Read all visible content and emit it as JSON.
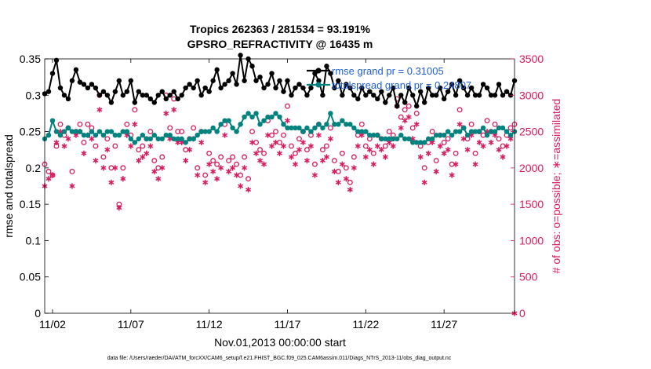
{
  "chart_data": {
    "type": "line",
    "title_line1": "Tropics 262363 / 281534 = 93.191%",
    "title_line2": "GPSRO_REFRACTIVITY @ 16435 m",
    "xlabel": "Nov.01,2013 00:00:00 start",
    "ylabel_left": "rmse and totalspread",
    "ylabel_right": "# of obs: o=possible; ∗=assimilated",
    "footer": "data file: /Users/raeder/DAI/ATM_forcXX/CAM6_setup/f.e21.FHIST_BGC.f09_025.CAM6assim.011/Diags_NTrS_2013-11/obs_diag_output.nc",
    "xlim": [
      1.5,
      31.5
    ],
    "x_ticks": [
      2,
      7,
      12,
      17,
      22,
      27
    ],
    "x_tick_labels": [
      "11/02",
      "11/07",
      "11/12",
      "11/17",
      "11/22",
      "11/27"
    ],
    "ylim_left": [
      0,
      0.35
    ],
    "y_ticks_left": [
      0,
      0.05,
      0.1,
      0.15,
      0.2,
      0.25,
      0.3,
      0.35
    ],
    "y_tick_labels_left": [
      "0",
      "0.05",
      "0.1",
      "0.15",
      "0.2",
      "0.25",
      "0.3",
      "0.35"
    ],
    "ylim_right": [
      0,
      3500
    ],
    "y_ticks_right": [
      0,
      500,
      1000,
      1500,
      2000,
      2500,
      3000,
      3500
    ],
    "y_tick_labels_right": [
      "0",
      "500",
      "1000",
      "1500",
      "2000",
      "2500",
      "3000",
      "3500"
    ],
    "legend": [
      {
        "label": "rmse grand pr = 0.31005",
        "color": "#000000"
      },
      {
        "label": "totalspread grand pr = 0.24807",
        "color": "#00827f"
      }
    ],
    "colors": {
      "rmse": "#000000",
      "spread": "#00827f",
      "obs": "#d81b60",
      "legend_text": "#1f5fd6"
    },
    "series": [
      {
        "name": "rmse",
        "x": [
          1.5,
          1.75,
          2.0,
          2.25,
          2.5,
          2.75,
          3.0,
          3.25,
          3.5,
          3.75,
          4.0,
          4.25,
          4.5,
          4.75,
          5.0,
          5.25,
          5.5,
          5.75,
          6.0,
          6.25,
          6.5,
          6.75,
          7.0,
          7.25,
          7.5,
          7.75,
          8.0,
          8.25,
          8.5,
          8.75,
          9.0,
          9.25,
          9.5,
          9.75,
          10.0,
          10.25,
          10.5,
          10.75,
          11.0,
          11.25,
          11.5,
          11.75,
          12.0,
          12.25,
          12.5,
          12.75,
          13.0,
          13.25,
          13.5,
          13.75,
          14.0,
          14.25,
          14.5,
          14.75,
          15.0,
          15.25,
          15.5,
          15.75,
          16.0,
          16.25,
          16.5,
          16.75,
          17.0,
          17.25,
          17.5,
          17.75,
          18.0,
          18.25,
          18.5,
          18.75,
          19.0,
          19.25,
          19.5,
          19.75,
          20.0,
          20.25,
          20.5,
          20.75,
          21.0,
          21.25,
          21.5,
          21.75,
          22.0,
          22.25,
          22.5,
          22.75,
          23.0,
          23.25,
          23.5,
          23.75,
          24.0,
          24.25,
          24.5,
          24.75,
          25.0,
          25.25,
          25.5,
          25.75,
          26.0,
          26.25,
          26.5,
          26.75,
          27.0,
          27.25,
          27.5,
          27.75,
          28.0,
          28.25,
          28.5,
          28.75,
          29.0,
          29.25,
          29.5,
          29.75,
          30.0,
          30.25,
          30.5,
          30.75,
          31.0,
          31.25,
          31.5
        ],
        "values": [
          0.302,
          0.305,
          0.33,
          0.348,
          0.31,
          0.3,
          0.295,
          0.32,
          0.335,
          0.318,
          0.315,
          0.31,
          0.315,
          0.31,
          0.3,
          0.305,
          0.3,
          0.29,
          0.305,
          0.32,
          0.3,
          0.305,
          0.32,
          0.29,
          0.305,
          0.3,
          0.3,
          0.295,
          0.29,
          0.3,
          0.305,
          0.295,
          0.3,
          0.305,
          0.295,
          0.3,
          0.31,
          0.315,
          0.31,
          0.32,
          0.3,
          0.31,
          0.305,
          0.32,
          0.335,
          0.31,
          0.315,
          0.32,
          0.33,
          0.315,
          0.355,
          0.32,
          0.35,
          0.34,
          0.32,
          0.325,
          0.31,
          0.315,
          0.33,
          0.31,
          0.32,
          0.305,
          0.32,
          0.3,
          0.31,
          0.315,
          0.31,
          0.3,
          0.31,
          0.33,
          0.32,
          0.3,
          0.34,
          0.33,
          0.31,
          0.32,
          0.3,
          0.315,
          0.31,
          0.3,
          0.295,
          0.31,
          0.3,
          0.305,
          0.3,
          0.295,
          0.305,
          0.29,
          0.3,
          0.31,
          0.285,
          0.3,
          0.29,
          0.31,
          0.3,
          0.285,
          0.305,
          0.29,
          0.31,
          0.3,
          0.3,
          0.31,
          0.295,
          0.305,
          0.315,
          0.3,
          0.32,
          0.31,
          0.3,
          0.31,
          0.3,
          0.3,
          0.315,
          0.31,
          0.3,
          0.3,
          0.315,
          0.3,
          0.305,
          0.3,
          0.32
        ]
      },
      {
        "name": "totalspread",
        "x": [
          1.5,
          1.75,
          2.0,
          2.25,
          2.5,
          2.75,
          3.0,
          3.25,
          3.5,
          3.75,
          4.0,
          4.25,
          4.5,
          4.75,
          5.0,
          5.25,
          5.5,
          5.75,
          6.0,
          6.25,
          6.5,
          6.75,
          7.0,
          7.25,
          7.5,
          7.75,
          8.0,
          8.25,
          8.5,
          8.75,
          9.0,
          9.25,
          9.5,
          9.75,
          10.0,
          10.25,
          10.5,
          10.75,
          11.0,
          11.25,
          11.5,
          11.75,
          12.0,
          12.25,
          12.5,
          12.75,
          13.0,
          13.25,
          13.5,
          13.75,
          14.0,
          14.25,
          14.5,
          14.75,
          15.0,
          15.25,
          15.5,
          15.75,
          16.0,
          16.25,
          16.5,
          16.75,
          17.0,
          17.25,
          17.5,
          17.75,
          18.0,
          18.25,
          18.5,
          18.75,
          19.0,
          19.25,
          19.5,
          19.75,
          20.0,
          20.25,
          20.5,
          20.75,
          21.0,
          21.25,
          21.5,
          21.75,
          22.0,
          22.25,
          22.5,
          22.75,
          23.0,
          23.25,
          23.5,
          23.75,
          24.0,
          24.25,
          24.5,
          24.75,
          25.0,
          25.25,
          25.5,
          25.75,
          26.0,
          26.25,
          26.5,
          26.75,
          27.0,
          27.25,
          27.5,
          27.75,
          28.0,
          28.25,
          28.5,
          28.75,
          29.0,
          29.25,
          29.5,
          29.75,
          30.0,
          30.25,
          30.5,
          30.75,
          31.0,
          31.25,
          31.5
        ],
        "values": [
          0.24,
          0.245,
          0.265,
          0.25,
          0.245,
          0.25,
          0.255,
          0.25,
          0.25,
          0.25,
          0.245,
          0.245,
          0.25,
          0.245,
          0.25,
          0.245,
          0.25,
          0.25,
          0.245,
          0.245,
          0.25,
          0.25,
          0.24,
          0.235,
          0.24,
          0.245,
          0.24,
          0.24,
          0.245,
          0.24,
          0.24,
          0.245,
          0.245,
          0.24,
          0.24,
          0.24,
          0.235,
          0.24,
          0.24,
          0.245,
          0.25,
          0.25,
          0.25,
          0.255,
          0.25,
          0.26,
          0.265,
          0.265,
          0.255,
          0.25,
          0.26,
          0.27,
          0.275,
          0.27,
          0.275,
          0.26,
          0.265,
          0.27,
          0.27,
          0.275,
          0.27,
          0.26,
          0.255,
          0.255,
          0.255,
          0.255,
          0.25,
          0.255,
          0.25,
          0.255,
          0.26,
          0.255,
          0.26,
          0.275,
          0.26,
          0.26,
          0.265,
          0.26,
          0.26,
          0.255,
          0.25,
          0.25,
          0.25,
          0.245,
          0.245,
          0.245,
          0.24,
          0.24,
          0.24,
          0.24,
          0.24,
          0.245,
          0.24,
          0.24,
          0.235,
          0.235,
          0.235,
          0.235,
          0.24,
          0.24,
          0.245,
          0.245,
          0.245,
          0.25,
          0.245,
          0.25,
          0.25,
          0.255,
          0.245,
          0.25,
          0.25,
          0.25,
          0.255,
          0.245,
          0.25,
          0.25,
          0.255,
          0.255,
          0.25,
          0.245,
          0.25
        ]
      },
      {
        "name": "possible_obs",
        "x": [
          1.5,
          1.75,
          2.0,
          2.25,
          2.5,
          2.75,
          3.0,
          3.25,
          3.5,
          3.75,
          4.0,
          4.25,
          4.5,
          4.75,
          5.0,
          5.25,
          5.5,
          5.75,
          6.0,
          6.25,
          6.5,
          6.75,
          7.0,
          7.25,
          7.5,
          7.75,
          8.0,
          8.25,
          8.5,
          8.75,
          9.0,
          9.25,
          9.5,
          9.75,
          10.0,
          10.25,
          10.5,
          10.75,
          11.0,
          11.25,
          11.5,
          11.75,
          12.0,
          12.25,
          12.5,
          12.75,
          13.0,
          13.25,
          13.5,
          13.75,
          14.0,
          14.25,
          14.5,
          14.75,
          15.0,
          15.25,
          15.5,
          15.75,
          16.0,
          16.25,
          16.5,
          16.75,
          17.0,
          17.25,
          17.5,
          17.75,
          18.0,
          18.25,
          18.5,
          18.75,
          19.0,
          19.25,
          19.5,
          19.75,
          20.0,
          20.25,
          20.5,
          20.75,
          21.0,
          21.25,
          21.5,
          21.75,
          22.0,
          22.25,
          22.5,
          22.75,
          23.0,
          23.25,
          23.5,
          23.75,
          24.0,
          24.25,
          24.5,
          24.75,
          25.0,
          25.25,
          25.5,
          25.75,
          26.0,
          26.25,
          26.5,
          26.75,
          27.0,
          27.25,
          27.5,
          27.75,
          28.0,
          28.25,
          28.5,
          28.75,
          29.0,
          29.25,
          29.5,
          29.75,
          30.0,
          30.25,
          30.5,
          30.75,
          31.0,
          31.25,
          31.5
        ],
        "values": [
          2050,
          1950,
          1900,
          2300,
          2600,
          2450,
          2550,
          1950,
          2500,
          2600,
          2350,
          2600,
          2550,
          2300,
          3000,
          2150,
          2400,
          2000,
          2300,
          1500,
          2000,
          2600,
          2450,
          2800,
          2250,
          2300,
          2400,
          2500,
          2100,
          2000,
          2150,
          3000,
          2550,
          2950,
          2500,
          2500,
          2250,
          2400,
          2550,
          2000,
          2500,
          1900,
          2200,
          2100,
          2050,
          2150,
          2600,
          2100,
          2150,
          2050,
          1900,
          2150,
          1850,
          2500,
          2350,
          2250,
          2200,
          2650,
          2450,
          2500,
          2350,
          2450,
          2850,
          2300,
          2200,
          2400,
          2500,
          2250,
          2450,
          2050,
          2600,
          2250,
          2300,
          2550,
          2100,
          1950,
          2200,
          2000,
          1800,
          2150,
          2450,
          2600,
          2300,
          2400,
          2200,
          2450,
          2400,
          2300,
          2500,
          2450,
          2950,
          2700,
          2800,
          2850,
          2550,
          2750,
          2300,
          2000,
          2350,
          2500,
          2100,
          2450,
          2350,
          2400,
          2050,
          2200,
          2800,
          2550,
          2400,
          2600,
          2200,
          2500,
          2450,
          2650,
          2500,
          2600,
          2400,
          2300,
          2450,
          2550,
          2600
        ]
      },
      {
        "name": "assimilated_obs",
        "x": [
          1.5,
          1.75,
          2.0,
          2.25,
          2.5,
          2.75,
          3.0,
          3.25,
          3.5,
          3.75,
          4.0,
          4.25,
          4.5,
          4.75,
          5.0,
          5.25,
          5.5,
          5.75,
          6.0,
          6.25,
          6.5,
          6.75,
          7.0,
          7.25,
          7.5,
          7.75,
          8.0,
          8.25,
          8.5,
          8.75,
          9.0,
          9.25,
          9.5,
          9.75,
          10.0,
          10.25,
          10.5,
          10.75,
          11.0,
          11.25,
          11.5,
          11.75,
          12.0,
          12.25,
          12.5,
          12.75,
          13.0,
          13.25,
          13.5,
          13.75,
          14.0,
          14.25,
          14.5,
          14.75,
          15.0,
          15.25,
          15.5,
          15.75,
          16.0,
          16.25,
          16.5,
          16.75,
          17.0,
          17.25,
          17.5,
          17.75,
          18.0,
          18.25,
          18.5,
          18.75,
          19.0,
          19.25,
          19.5,
          19.75,
          20.0,
          20.25,
          20.5,
          20.75,
          21.0,
          21.25,
          21.5,
          21.75,
          22.0,
          22.25,
          22.5,
          22.75,
          23.0,
          23.25,
          23.5,
          23.75,
          24.0,
          24.25,
          24.5,
          24.75,
          25.0,
          25.25,
          25.5,
          25.75,
          26.0,
          26.25,
          26.5,
          26.75,
          27.0,
          27.25,
          27.5,
          27.75,
          28.0,
          28.25,
          28.5,
          28.75,
          29.0,
          29.25,
          29.5,
          29.75,
          30.0,
          30.25,
          30.5,
          30.75,
          31.0,
          31.25,
          31.5
        ],
        "values": [
          1750,
          1850,
          1900,
          2350,
          2500,
          2300,
          2400,
          1750,
          2450,
          2500,
          2200,
          2450,
          2400,
          2100,
          2800,
          2000,
          2250,
          1800,
          2000,
          1450,
          1850,
          2450,
          2300,
          2600,
          2100,
          2150,
          2200,
          2300,
          1950,
          1850,
          2000,
          2750,
          2400,
          2800,
          2350,
          2350,
          2100,
          2250,
          2400,
          1900,
          2350,
          1800,
          2050,
          1950,
          1850,
          2000,
          2450,
          1950,
          2000,
          1900,
          1750,
          2000,
          1700,
          2350,
          2200,
          2100,
          2050,
          2450,
          2300,
          2350,
          2200,
          2300,
          2650,
          2150,
          2050,
          2250,
          2350,
          2100,
          2300,
          1900,
          2450,
          2100,
          2150,
          2400,
          1950,
          1800,
          2050,
          1850,
          1700,
          2000,
          2300,
          2450,
          2150,
          2250,
          2050,
          2300,
          2250,
          2150,
          2350,
          2300,
          2850,
          2550,
          2650,
          2700,
          2400,
          2600,
          2150,
          1800,
          2200,
          2350,
          1950,
          2300,
          2200,
          2250,
          1900,
          2050,
          2600,
          2400,
          2250,
          2450,
          2050,
          2350,
          2300,
          2500,
          2350,
          2450,
          2250,
          2150,
          2300,
          2400,
          0
        ]
      }
    ]
  }
}
